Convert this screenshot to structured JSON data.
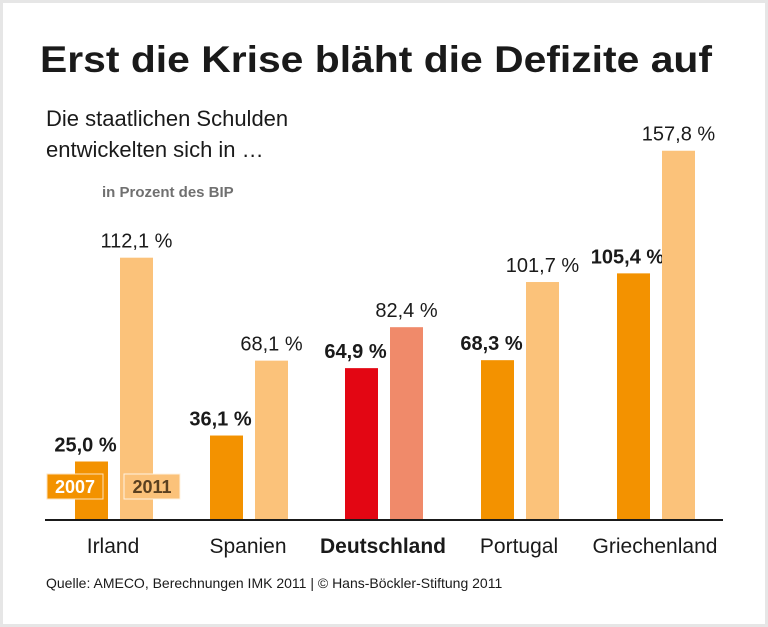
{
  "chart_data": {
    "type": "bar",
    "title": "Erst die Krise bläht die Defizite auf",
    "subtitle_lines": [
      "Die staatlichen Schulden",
      "entwickelten sich in …"
    ],
    "unit_label": "in Prozent des BIP",
    "categories": [
      "Irland",
      "Spanien",
      "Deutschland",
      "Portugal",
      "Griechenland"
    ],
    "highlight_category": "Deutschland",
    "series": [
      {
        "name": "2007",
        "values": [
          25.0,
          36.1,
          64.9,
          68.3,
          105.4
        ],
        "labels": [
          "25,0 %",
          "36,1 %",
          "64,9 %",
          "68,3 %",
          "105,4 %"
        ],
        "color": "#f39200",
        "highlight_color": "#e30613"
      },
      {
        "name": "2011",
        "values": [
          112.1,
          68.1,
          82.4,
          101.7,
          157.8
        ],
        "labels": [
          "112,1 %",
          "68,1 %",
          "82,4 %",
          "101,7 %",
          "157,8 %"
        ],
        "color": "#fbc27a",
        "highlight_color": "#f08a6a"
      }
    ],
    "ylim": [
      0,
      165
    ],
    "grid": false,
    "legend": "bottom-left, inside Irland bars",
    "source": "Quelle: AMECO, Berechnungen IMK 2011 | © Hans-Böckler-Stiftung 2011"
  }
}
